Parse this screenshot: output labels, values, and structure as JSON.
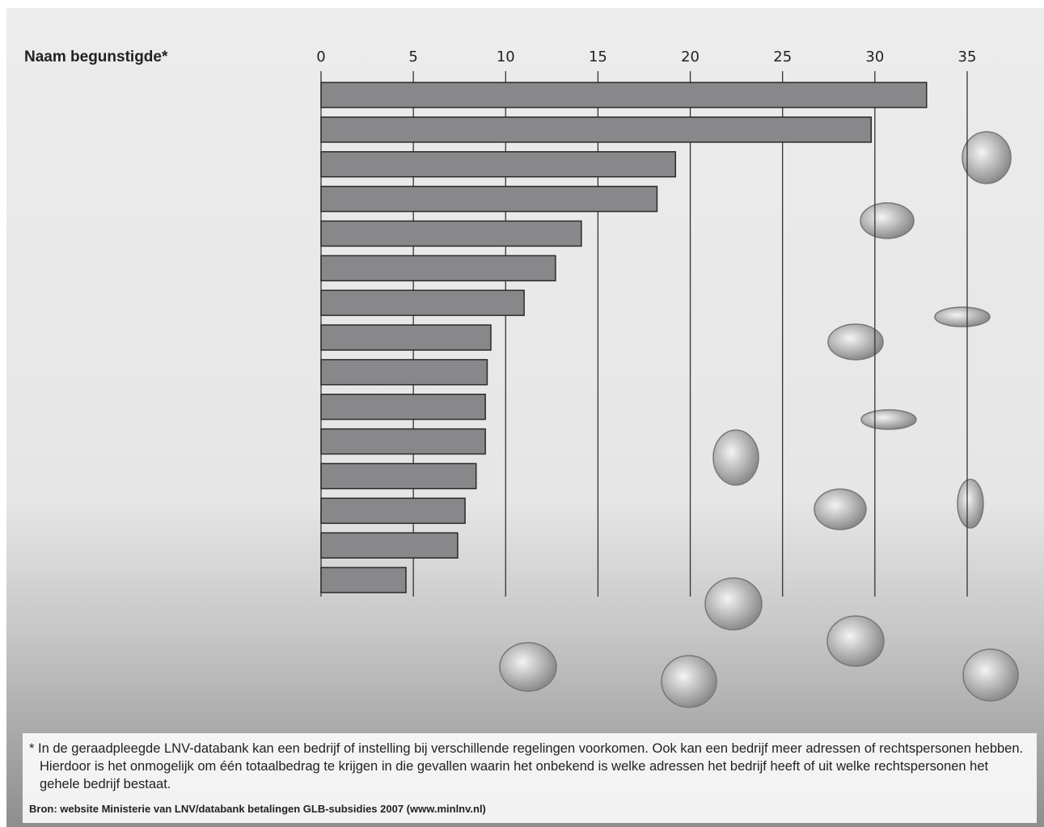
{
  "chart_data": {
    "type": "bar",
    "orientation": "horizontal",
    "title": "Naam begunstigde*",
    "categories": [
      null,
      null,
      null,
      null,
      null,
      null,
      null,
      null,
      null,
      null,
      null,
      null,
      null,
      null,
      null
    ],
    "values": [
      32.8,
      29.8,
      19.2,
      18.2,
      14.1,
      12.7,
      11.0,
      9.2,
      9.0,
      8.9,
      8.9,
      8.4,
      7.8,
      7.4,
      4.6
    ],
    "color": "#88888b",
    "xlim": [
      0,
      35
    ],
    "xticks": [
      0,
      5,
      10,
      15,
      20,
      25,
      30,
      35
    ],
    "grid": true,
    "footnote": "* In de geraadpleegde LNV-databank kan een bedrijf of instelling bij verschillende regelingen voorkomen. Ook kan een bedrijf meer adressen of rechtspersonen hebben. Hierdoor is het onmogelijk om één totaalbedrag te krijgen in die gevallen waarin het onbekend is welke adressen het bedrijf heeft of uit welke rechtspersonen het gehele bedrijf bestaat.",
    "source": "Bron: website Ministerie van LNV/databank betalingen GLB-subsidies 2007 (www.minlnv.nl)"
  }
}
